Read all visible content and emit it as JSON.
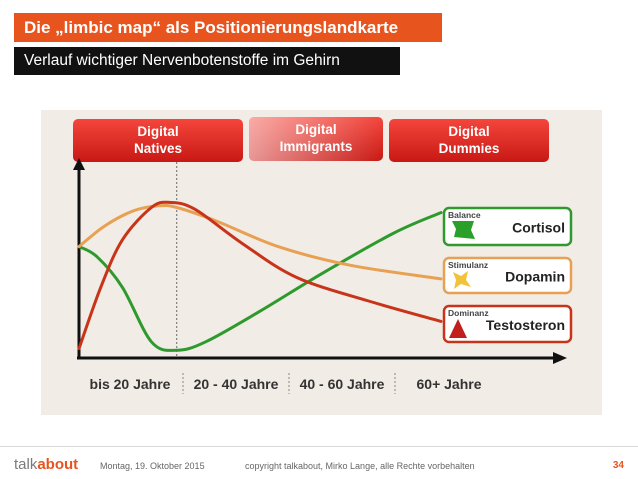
{
  "slide": {
    "title": "Die „limbic map“ als Positionierungslandkarte",
    "subtitle": "Verlauf wichtiger Nervenbotenstoffe im Gehirn"
  },
  "colors": {
    "accent": "#e8541e",
    "cortisol": "#2e9a2e",
    "dopamin": "#e8a052",
    "testosteron": "#c8341a",
    "header_red": "#e0231c"
  },
  "chart_data": {
    "type": "line",
    "headers": [
      {
        "label": "Digital\nNatives"
      },
      {
        "label": "Digital\nImmigrants"
      },
      {
        "label": "Digital\nDummies"
      }
    ],
    "categories": [
      "bis 20 Jahre",
      "20 - 40 Jahre",
      "40 - 60 Jahre",
      "60+ Jahre"
    ],
    "x_range": [
      0,
      100
    ],
    "y_range": [
      0,
      100
    ],
    "grid": false,
    "divider_x": 27,
    "series": [
      {
        "name": "Cortisol",
        "tag": "Balance",
        "icon": "green-flag-icon",
        "color": "#2e9a2e",
        "points": [
          [
            0,
            62
          ],
          [
            5,
            56
          ],
          [
            12,
            38
          ],
          [
            20,
            6
          ],
          [
            27,
            1
          ],
          [
            35,
            6
          ],
          [
            50,
            24
          ],
          [
            67,
            46
          ],
          [
            87,
            70
          ],
          [
            100,
            82
          ]
        ]
      },
      {
        "name": "Dopamin",
        "tag": "Stimulanz",
        "icon": "yellow-shape-icon",
        "color": "#e8a052",
        "points": [
          [
            0,
            62
          ],
          [
            7,
            74
          ],
          [
            15,
            83
          ],
          [
            22,
            86
          ],
          [
            27,
            85
          ],
          [
            38,
            77
          ],
          [
            55,
            62
          ],
          [
            75,
            51
          ],
          [
            100,
            43
          ]
        ]
      },
      {
        "name": "Testosteron",
        "tag": "Dominanz",
        "icon": "red-triangle-icon",
        "color": "#c8341a",
        "points": [
          [
            0,
            2
          ],
          [
            6,
            38
          ],
          [
            12,
            66
          ],
          [
            20,
            85
          ],
          [
            25,
            88
          ],
          [
            32,
            84
          ],
          [
            45,
            64
          ],
          [
            60,
            44
          ],
          [
            80,
            30
          ],
          [
            100,
            18
          ]
        ]
      }
    ]
  },
  "footer": {
    "brand_talk": "talk",
    "brand_about": "about",
    "date": "Montag, 19. Oktober 2015",
    "copyright": "copyright talkabout, Mirko Lange, alle Rechte vorbehalten",
    "page": "34"
  }
}
